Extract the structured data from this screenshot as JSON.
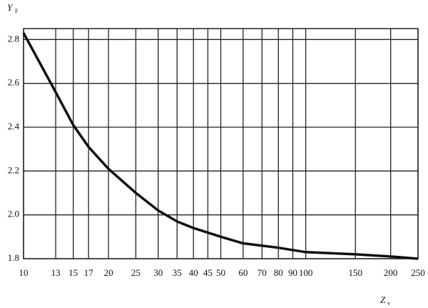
{
  "chart_data": {
    "type": "line",
    "ylabel": {
      "text": "Y",
      "subscript": "F"
    },
    "xlabel": {
      "text": "Z",
      "subscript": "v"
    },
    "x": [
      10,
      13,
      15,
      17,
      20,
      25,
      30,
      35,
      40,
      50,
      60,
      80,
      100,
      150,
      200,
      250
    ],
    "series": [
      {
        "color": "#111111",
        "values": [
          2.83,
          2.56,
          2.41,
          2.31,
          2.21,
          2.1,
          2.02,
          1.97,
          1.94,
          1.9,
          1.87,
          1.85,
          1.83,
          1.82,
          1.81,
          1.8
        ]
      }
    ],
    "xlim": [
      10,
      250
    ],
    "xscale": "log",
    "xticks": [
      10,
      13,
      15,
      17,
      20,
      25,
      30,
      35,
      40,
      45,
      50,
      60,
      70,
      80,
      90,
      100,
      150,
      200,
      250
    ],
    "ylim": [
      1.8,
      2.85
    ],
    "yticks": [
      1.8,
      {
        "value": 2,
        "label": "2.0"
      },
      2.2,
      2.4,
      2.6,
      2.8
    ],
    "grid": true
  }
}
